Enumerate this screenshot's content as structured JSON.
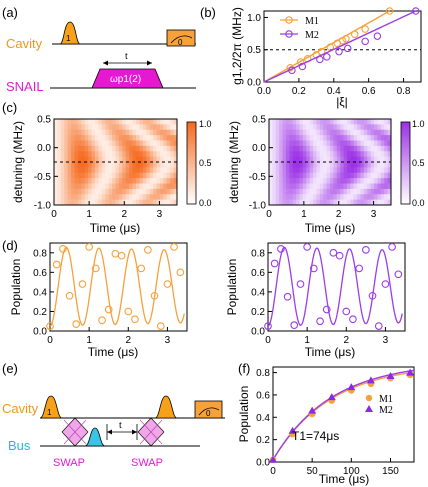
{
  "panel_labels": {
    "a": "(a)",
    "b": "(b)",
    "c": "(c)",
    "d": "(d)",
    "e": "(e)",
    "f": "(f)"
  },
  "schematic_a": {
    "cavity_label": "Cavity",
    "snail_label": "SNAIL",
    "fock_one": "1",
    "fock_zero": "0",
    "time_label": "t",
    "pump_label": "ωp1(2)",
    "colors": {
      "cavity_text": "#f0961e",
      "snail_text": "#e619d2",
      "pulse": "#f7a11a",
      "pump": "#e619d2"
    }
  },
  "schematic_e": {
    "cavity_label": "Cavity",
    "bus_label": "Bus",
    "swap_left": "SWAP",
    "swap_right": "SWAP",
    "time_label": "t",
    "fock_one": "1",
    "fock_zero": "0",
    "colors": {
      "cavity_text": "#f0961e",
      "bus_text": "#2ab8d8",
      "swap_text": "#e619d2",
      "swap_fill": "#f0a6e8",
      "bus_pulse": "#39c4e6"
    }
  },
  "chart_data": [
    {
      "panel": "b",
      "type": "line",
      "xlabel": "|ξ|",
      "ylabel": "g1,2/2π (MHz)",
      "xlim": [
        0,
        0.9
      ],
      "ylim": [
        0,
        1.1
      ],
      "xticks": [
        "0.0",
        "0.2",
        "0.4",
        "0.6",
        "0.8"
      ],
      "yticks": [
        "0.0",
        "0.5",
        "1.0"
      ],
      "hline": 0.5,
      "legend_position": "top-left",
      "series": [
        {
          "name": "M1",
          "color": "#f7a13a",
          "x": [
            0.15,
            0.21,
            0.25,
            0.3,
            0.33,
            0.38,
            0.42,
            0.45,
            0.47,
            0.52,
            0.58,
            0.72
          ],
          "y": [
            0.22,
            0.31,
            0.36,
            0.42,
            0.47,
            0.54,
            0.6,
            0.64,
            0.67,
            0.74,
            0.82,
            1.1
          ]
        },
        {
          "name": "M2",
          "color": "#9b3ee6",
          "x": [
            0.16,
            0.22,
            0.32,
            0.36,
            0.43,
            0.48,
            0.58,
            0.65,
            0.87
          ],
          "y": [
            0.18,
            0.24,
            0.35,
            0.39,
            0.47,
            0.52,
            0.63,
            0.71,
            1.1
          ]
        }
      ]
    },
    {
      "panel": "c-left",
      "type": "heatmap",
      "xlabel": "Time (μs)",
      "ylabel": "detuning (MHz)",
      "xlim": [
        0,
        3.5
      ],
      "ylim": [
        -1.0,
        0.5
      ],
      "xticks": [
        "0",
        "1",
        "2",
        "3"
      ],
      "yticks": [
        "0.5",
        "0.0",
        "-0.5",
        "-1.0"
      ],
      "colorbar_ticks": [
        "1.0",
        "0.5",
        "0.0"
      ],
      "colormap": [
        "#ffffff",
        "#f56a1e"
      ],
      "hline": -0.25,
      "resonance_detuning": -0.25,
      "rabi_rate_MHz": 0.62
    },
    {
      "panel": "c-right",
      "type": "heatmap",
      "xlabel": "Time (μs)",
      "ylabel": "detuning (MHz)",
      "xlim": [
        0,
        3.5
      ],
      "ylim": [
        -1.0,
        0.5
      ],
      "xticks": [
        "0",
        "1",
        "2",
        "3"
      ],
      "yticks": [
        "0.5",
        "0.0",
        "-0.5",
        "-1.0"
      ],
      "colorbar_ticks": [
        "1.0",
        "0.5",
        "0.0"
      ],
      "colormap": [
        "#ffffff",
        "#9b30e6"
      ],
      "hline": -0.25,
      "resonance_detuning": -0.25,
      "rabi_rate_MHz": 0.62
    },
    {
      "panel": "d-left",
      "type": "line",
      "xlabel": "Time (μs)",
      "ylabel": "Population",
      "xlim": [
        0,
        3.5
      ],
      "ylim": [
        0,
        0.9
      ],
      "xticks": [
        "0",
        "1",
        "2",
        "3"
      ],
      "yticks": [
        "0.0",
        "0.2",
        "0.4",
        "0.6",
        "0.8"
      ],
      "series": [
        {
          "name": "",
          "color": "#f7a13a",
          "x": [
            0.0,
            0.17,
            0.33,
            0.5,
            0.67,
            0.83,
            1.0,
            1.17,
            1.33,
            1.5,
            1.67,
            1.83,
            2.0,
            2.17,
            2.33,
            2.5,
            2.67,
            2.83,
            3.0,
            3.17,
            3.33
          ],
          "y": [
            0.05,
            0.68,
            0.84,
            0.36,
            0.07,
            0.48,
            0.86,
            0.64,
            0.11,
            0.22,
            0.79,
            0.77,
            0.2,
            0.12,
            0.64,
            0.83,
            0.36,
            0.05,
            0.48,
            0.86,
            0.6
          ]
        }
      ]
    },
    {
      "panel": "d-right",
      "type": "line",
      "xlabel": "Time (μs)",
      "ylabel": "Population",
      "xlim": [
        0,
        3.5
      ],
      "ylim": [
        0,
        0.9
      ],
      "xticks": [
        "0",
        "1",
        "2",
        "3"
      ],
      "yticks": [
        "0.0",
        "0.2",
        "0.4",
        "0.6",
        "0.8"
      ],
      "series": [
        {
          "name": "",
          "color": "#9b3ee6",
          "x": [
            0.0,
            0.17,
            0.33,
            0.5,
            0.67,
            0.83,
            1.0,
            1.17,
            1.33,
            1.5,
            1.67,
            1.83,
            2.0,
            2.17,
            2.33,
            2.5,
            2.67,
            2.83,
            3.0,
            3.17,
            3.33
          ],
          "y": [
            0.05,
            0.69,
            0.84,
            0.35,
            0.06,
            0.48,
            0.86,
            0.64,
            0.1,
            0.22,
            0.8,
            0.77,
            0.2,
            0.12,
            0.64,
            0.83,
            0.36,
            0.05,
            0.48,
            0.86,
            0.58
          ]
        }
      ]
    },
    {
      "panel": "f",
      "type": "scatter",
      "xlabel": "Time (μs)",
      "ylabel": "Population",
      "xlim": [
        0,
        180
      ],
      "ylim": [
        0,
        0.85
      ],
      "xticks": [
        "0",
        "50",
        "100",
        "150"
      ],
      "yticks": [
        "0.0",
        "0.2",
        "0.4",
        "0.6",
        "0.8"
      ],
      "annotation": "T1=74μs",
      "legend_position": "bottom-right",
      "series": [
        {
          "name": "M1",
          "color": "#f7a13a",
          "marker": "circle",
          "x": [
            0,
            25,
            50,
            75,
            100,
            125,
            150,
            175
          ],
          "y": [
            0.02,
            0.25,
            0.43,
            0.55,
            0.64,
            0.7,
            0.75,
            0.78
          ]
        },
        {
          "name": "M2",
          "color": "#8a2be2",
          "marker": "triangle",
          "x": [
            0,
            25,
            50,
            75,
            100,
            125,
            150,
            175
          ],
          "y": [
            0.02,
            0.28,
            0.46,
            0.58,
            0.67,
            0.73,
            0.77,
            0.8
          ]
        }
      ],
      "fits": [
        {
          "color": "#f7a13a",
          "amplitude": 0.86,
          "t1": 74
        },
        {
          "color": "#9b3ee6",
          "amplitude": 0.86,
          "t1": 74
        }
      ]
    }
  ]
}
